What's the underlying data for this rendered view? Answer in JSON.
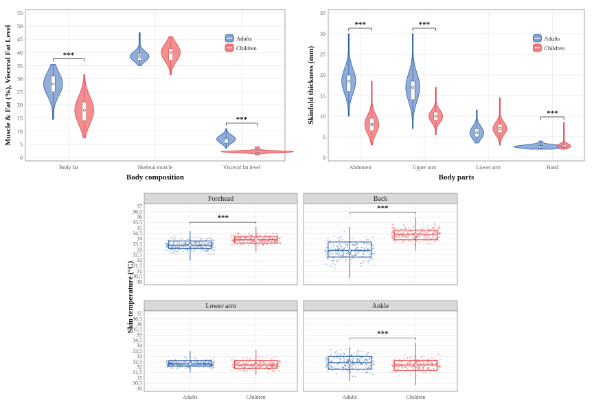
{
  "chart_data": [
    {
      "type": "violin",
      "xlabel": "Body composition",
      "ylabel": "Muscle & Fat (%),  Visceral Fat Level",
      "ylim": [
        0,
        55
      ],
      "yticks": [
        0,
        5,
        10,
        15,
        20,
        25,
        30,
        35,
        40,
        45,
        50,
        55
      ],
      "categories": [
        "Body fat",
        "Skeletal muscle",
        "Visceral fat level"
      ],
      "legend": [
        "Adults",
        "Children"
      ],
      "series": [
        {
          "name": "Adults",
          "min": [
            14.5,
            35,
            3.5
          ],
          "q1": [
            25,
            37,
            5.5
          ],
          "median": [
            28,
            38.5,
            7
          ],
          "q3": [
            31,
            39.5,
            7.5
          ],
          "max": [
            35.5,
            47.5,
            11
          ]
        },
        {
          "name": "Children",
          "min": [
            7.5,
            31.5,
            1
          ],
          "q1": [
            14,
            37,
            2
          ],
          "median": [
            18,
            40,
            2.2
          ],
          "q3": [
            21,
            41.5,
            2.5
          ],
          "max": [
            31.5,
            46,
            4
          ]
        }
      ],
      "significance": [
        "***",
        "",
        "***"
      ]
    },
    {
      "type": "violin",
      "xlabel": "Body parts",
      "ylabel": "Skinfold thickness (mm)",
      "ylim": [
        0,
        35
      ],
      "yticks": [
        0,
        5,
        10,
        15,
        20,
        25,
        30,
        35
      ],
      "categories": [
        "Abdomen",
        "Upper arm",
        "Lower arm",
        "Hand"
      ],
      "legend": [
        "Adults",
        "Children"
      ],
      "series": [
        {
          "name": "Adults",
          "min": [
            10,
            7,
            3.5,
            2
          ],
          "q1": [
            16,
            14,
            5,
            2.3
          ],
          "median": [
            18.5,
            17,
            6,
            2.6
          ],
          "q3": [
            20,
            18.5,
            7,
            2.9
          ],
          "max": [
            30,
            30,
            11.5,
            4
          ]
        },
        {
          "name": "Children",
          "min": [
            3,
            5.5,
            3,
            2
          ],
          "q1": [
            6.5,
            9,
            6,
            2.5
          ],
          "median": [
            8,
            10,
            7,
            2.8
          ],
          "q3": [
            9.5,
            11,
            8,
            3.2
          ],
          "max": [
            18.5,
            17,
            14.5,
            8.5
          ]
        }
      ],
      "significance": [
        "***",
        "***",
        "",
        "***"
      ]
    },
    {
      "type": "box",
      "ylabel": "Skin temperature (°C)",
      "ylim": [
        30,
        37
      ],
      "yticks": [
        30,
        30.5,
        31,
        31.5,
        32,
        32.5,
        33,
        33.5,
        34,
        34.5,
        35,
        35.5,
        36,
        36.5,
        37
      ],
      "categories": [
        "Adults",
        "Children"
      ],
      "panels": [
        {
          "title": "Forehead",
          "adults": {
            "min": 32,
            "q1": 33.1,
            "median": 33.4,
            "q3": 33.8,
            "max": 34.7
          },
          "children": {
            "min": 32.8,
            "q1": 33.6,
            "median": 33.9,
            "q3": 34.2,
            "max": 35.1
          },
          "significance": "***"
        },
        {
          "title": "Back",
          "adults": {
            "min": 30.4,
            "q1": 32.3,
            "median": 32.9,
            "q3": 33.7,
            "max": 35.1
          },
          "children": {
            "min": 32.9,
            "q1": 33.9,
            "median": 34.4,
            "q3": 34.8,
            "max": 36
          },
          "significance": "***"
        },
        {
          "title": "Lower arm",
          "adults": {
            "min": 31.5,
            "q1": 32.1,
            "median": 32.3,
            "q3": 32.6,
            "max": 33.5
          },
          "children": {
            "min": 31.3,
            "q1": 31.9,
            "median": 32.2,
            "q3": 32.6,
            "max": 33.6
          },
          "significance": ""
        },
        {
          "title": "Ankle",
          "adults": {
            "min": 30.7,
            "q1": 31.8,
            "median": 32.4,
            "q3": 33,
            "max": 33.9
          },
          "children": {
            "min": 30.3,
            "q1": 31.7,
            "median": 32.2,
            "q3": 32.6,
            "max": 34.3
          },
          "significance": "***"
        }
      ]
    }
  ],
  "colors": {
    "adults": "#2b5ea8",
    "adults_fill": "#7f9fd0",
    "children": "#e0474c",
    "children_fill": "#f07b7e",
    "grid": "#e6e6e6",
    "strip_bg": "#d9d9d9"
  }
}
